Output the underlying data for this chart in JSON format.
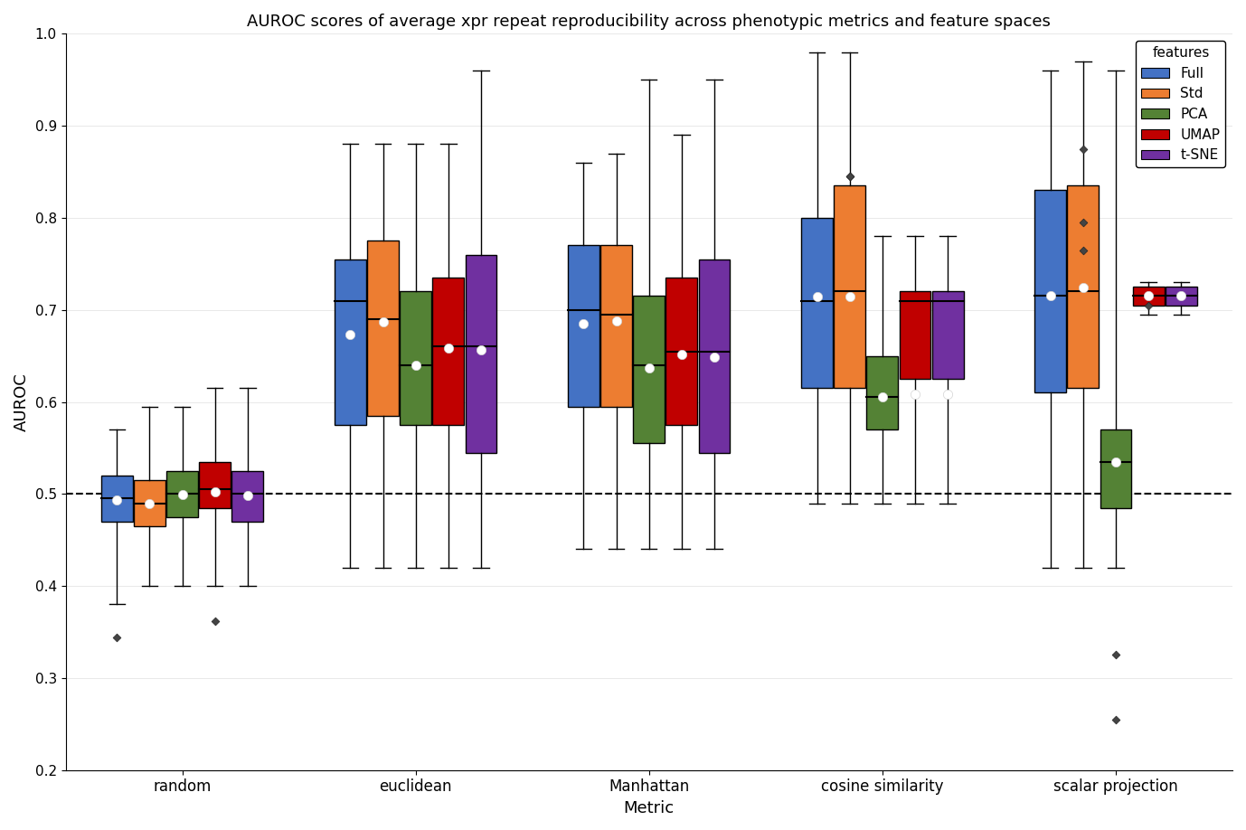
{
  "title": "AUROC scores of average xpr repeat reproducibility across phenotypic metrics and feature spaces",
  "xlabel": "Metric",
  "ylabel": "AUROC",
  "ylim": [
    0.2,
    1.0
  ],
  "yticks": [
    0.2,
    0.3,
    0.4,
    0.5,
    0.6,
    0.7,
    0.8,
    0.9,
    1.0
  ],
  "hline": 0.5,
  "metrics": [
    "random",
    "euclidean",
    "Manhattan",
    "cosine similarity",
    "scalar projection"
  ],
  "features": [
    "Full",
    "Std",
    "PCA",
    "UMAP",
    "t-SNE"
  ],
  "colors": {
    "Full": "#4472c4",
    "Std": "#ed7d31",
    "PCA": "#548235",
    "UMAP": "#c00000",
    "t-SNE": "#7030a0"
  },
  "boxplot_data": {
    "random": {
      "Full": {
        "q1": 0.47,
        "median": 0.495,
        "q3": 0.52,
        "whislo": 0.38,
        "whishi": 0.57,
        "mean": 0.493,
        "fliers": [
          0.344
        ]
      },
      "Std": {
        "q1": 0.465,
        "median": 0.49,
        "q3": 0.515,
        "whislo": 0.4,
        "whishi": 0.595,
        "mean": 0.49,
        "fliers": []
      },
      "PCA": {
        "q1": 0.475,
        "median": 0.5,
        "q3": 0.525,
        "whislo": 0.4,
        "whishi": 0.595,
        "mean": 0.499,
        "fliers": []
      },
      "UMAP": {
        "q1": 0.485,
        "median": 0.505,
        "q3": 0.535,
        "whislo": 0.4,
        "whishi": 0.615,
        "mean": 0.502,
        "fliers": [
          0.362
        ]
      },
      "t-SNE": {
        "q1": 0.47,
        "median": 0.5,
        "q3": 0.525,
        "whislo": 0.4,
        "whishi": 0.615,
        "mean": 0.498,
        "fliers": []
      }
    },
    "euclidean": {
      "Full": {
        "q1": 0.575,
        "median": 0.71,
        "q3": 0.755,
        "whislo": 0.42,
        "whishi": 0.88,
        "mean": 0.673,
        "fliers": []
      },
      "Std": {
        "q1": 0.585,
        "median": 0.69,
        "q3": 0.775,
        "whislo": 0.42,
        "whishi": 0.88,
        "mean": 0.687,
        "fliers": []
      },
      "PCA": {
        "q1": 0.575,
        "median": 0.64,
        "q3": 0.72,
        "whislo": 0.42,
        "whishi": 0.88,
        "mean": 0.64,
        "fliers": []
      },
      "UMAP": {
        "q1": 0.575,
        "median": 0.66,
        "q3": 0.735,
        "whislo": 0.42,
        "whishi": 0.88,
        "mean": 0.658,
        "fliers": []
      },
      "t-SNE": {
        "q1": 0.545,
        "median": 0.66,
        "q3": 0.76,
        "whislo": 0.42,
        "whishi": 0.96,
        "mean": 0.657,
        "fliers": []
      }
    },
    "Manhattan": {
      "Full": {
        "q1": 0.595,
        "median": 0.7,
        "q3": 0.77,
        "whislo": 0.44,
        "whishi": 0.86,
        "mean": 0.685,
        "fliers": []
      },
      "Std": {
        "q1": 0.595,
        "median": 0.695,
        "q3": 0.77,
        "whislo": 0.44,
        "whishi": 0.87,
        "mean": 0.688,
        "fliers": []
      },
      "PCA": {
        "q1": 0.555,
        "median": 0.64,
        "q3": 0.715,
        "whislo": 0.44,
        "whishi": 0.95,
        "mean": 0.637,
        "fliers": []
      },
      "UMAP": {
        "q1": 0.575,
        "median": 0.655,
        "q3": 0.735,
        "whislo": 0.44,
        "whishi": 0.89,
        "mean": 0.652,
        "fliers": []
      },
      "t-SNE": {
        "q1": 0.545,
        "median": 0.655,
        "q3": 0.755,
        "whislo": 0.44,
        "whishi": 0.95,
        "mean": 0.649,
        "fliers": []
      }
    },
    "cosine similarity": {
      "Full": {
        "q1": 0.615,
        "median": 0.71,
        "q3": 0.8,
        "whislo": 0.49,
        "whishi": 0.98,
        "mean": 0.714,
        "fliers": []
      },
      "Std": {
        "q1": 0.615,
        "median": 0.72,
        "q3": 0.835,
        "whislo": 0.49,
        "whishi": 0.98,
        "mean": 0.714,
        "fliers": [
          0.845,
          0.845
        ]
      },
      "PCA": {
        "q1": 0.57,
        "median": 0.605,
        "q3": 0.65,
        "whislo": 0.49,
        "whishi": 0.78,
        "mean": 0.605,
        "fliers": []
      },
      "UMAP": {
        "q1": 0.625,
        "median": 0.71,
        "q3": 0.72,
        "whislo": 0.49,
        "whishi": 0.78,
        "mean": 0.608,
        "fliers": []
      },
      "t-SNE": {
        "q1": 0.625,
        "median": 0.71,
        "q3": 0.72,
        "whislo": 0.49,
        "whishi": 0.78,
        "mean": 0.608,
        "fliers": []
      }
    },
    "scalar projection": {
      "Full": {
        "q1": 0.61,
        "median": 0.715,
        "q3": 0.83,
        "whislo": 0.42,
        "whishi": 0.96,
        "mean": 0.715,
        "fliers": []
      },
      "Std": {
        "q1": 0.615,
        "median": 0.72,
        "q3": 0.835,
        "whislo": 0.42,
        "whishi": 0.97,
        "mean": 0.724,
        "fliers": [
          0.875,
          0.795,
          0.765
        ]
      },
      "PCA": {
        "q1": 0.485,
        "median": 0.535,
        "q3": 0.57,
        "whislo": 0.42,
        "whishi": 0.96,
        "mean": 0.535,
        "fliers": [
          0.325,
          0.255
        ]
      },
      "UMAP": {
        "q1": 0.705,
        "median": 0.715,
        "q3": 0.725,
        "whislo": 0.695,
        "whishi": 0.73,
        "mean": 0.715,
        "fliers": [
          0.705
        ]
      },
      "t-SNE": {
        "q1": 0.705,
        "median": 0.715,
        "q3": 0.725,
        "whislo": 0.695,
        "whishi": 0.73,
        "mean": 0.715,
        "fliers": []
      }
    }
  }
}
